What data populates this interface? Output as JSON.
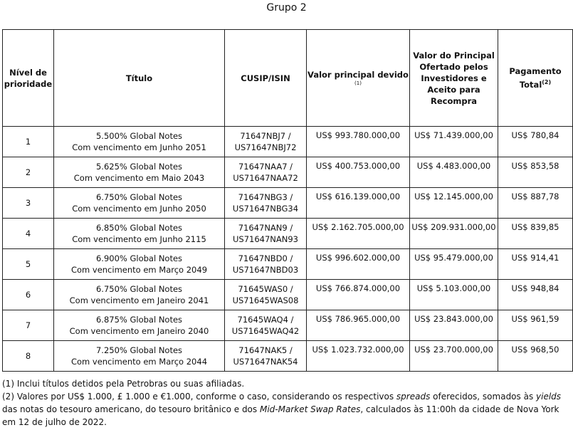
{
  "title": "Grupo 2",
  "table": {
    "header": {
      "priority": "Nível de prioridade",
      "title": "Título",
      "cusip": "CUSIP/ISIN",
      "principal": "Valor principal devido",
      "principal_note": "(1)",
      "accepted": "Valor do Principal Ofertado pelos Investidores e Aceito para Recompra",
      "payment": "Pagamento Total",
      "payment_note": "(2)"
    },
    "rows": [
      {
        "priority": "1",
        "title": [
          "5.500% Global Notes",
          "Com vencimento em Junho 2051"
        ],
        "cusip": [
          "71647NBJ7 /",
          "US71647NBJ72"
        ],
        "principal": "US$ 993.780.000,00",
        "accepted": "US$ 71.439.000,00",
        "payment": "US$ 780,84"
      },
      {
        "priority": "2",
        "title": [
          "5.625% Global Notes",
          "Com vencimento em Maio 2043"
        ],
        "cusip": [
          "71647NAA7 /",
          "US71647NAA72"
        ],
        "principal": "US$ 400.753.000,00",
        "accepted": "US$ 4.483.000,00",
        "payment": "US$ 853,58"
      },
      {
        "priority": "3",
        "title": [
          "6.750% Global Notes",
          "Com vencimento em Junho 2050"
        ],
        "cusip": [
          "71647NBG3 /",
          "US71647NBG34"
        ],
        "principal": "US$ 616.139.000,00",
        "accepted": "US$ 12.145.000,00",
        "payment": "US$ 887,78"
      },
      {
        "priority": "4",
        "title": [
          "6.850% Global Notes",
          "Com vencimento em Junho 2115"
        ],
        "cusip": [
          "71647NAN9 /",
          "US71647NAN93"
        ],
        "principal": "US$ 2.162.705.000,00",
        "accepted": "US$ 209.931.000,00",
        "payment": "US$ 839,85"
      },
      {
        "priority": "5",
        "title": [
          "6.900% Global Notes",
          "Com vencimento em Março 2049"
        ],
        "cusip": [
          "71647NBD0 /",
          "US71647NBD03"
        ],
        "principal": "US$ 996.602.000,00",
        "accepted": "US$ 95.479.000,00",
        "payment": "US$ 914,41"
      },
      {
        "priority": "6",
        "title": [
          "6.750% Global Notes",
          "Com vencimento em Janeiro 2041"
        ],
        "cusip": [
          "71645WAS0 /",
          "US71645WAS08"
        ],
        "principal": "US$ 766.874.000,00",
        "accepted": "US$ 5.103.000,00",
        "payment": "US$ 948,84"
      },
      {
        "priority": "7",
        "title": [
          "6.875% Global Notes",
          "Com vencimento em Janeiro 2040"
        ],
        "cusip": [
          "71645WAQ4 /",
          "US71645WAQ42"
        ],
        "principal": "US$ 786.965.000,00",
        "accepted": "US$ 23.843.000,00",
        "payment": "US$ 961,59"
      },
      {
        "priority": "8",
        "title": [
          "7.250% Global Notes",
          "Com vencimento em Março 2044"
        ],
        "cusip": [
          "71647NAK5 /",
          "US71647NAK54"
        ],
        "principal": "US$ 1.023.732.000,00",
        "accepted": "US$ 23.700.000,00",
        "payment": "US$ 968,50"
      }
    ]
  },
  "footnotes": {
    "note1": "(1) Inclui títulos detidos pela Petrobras ou suas afiliadas.",
    "note2": [
      "(2) Valores por US$ 1.000, £ 1.000 e €1.000, conforme o caso, considerando os respectivos ",
      "spreads",
      " oferecidos, somados às ",
      "yields",
      " das notas do tesouro americano, do tesouro britânico e dos ",
      "Mid-Market Swap Rates",
      ", calculados às 11:00h da cidade de Nova York em 12 de julho de 2022."
    ]
  }
}
